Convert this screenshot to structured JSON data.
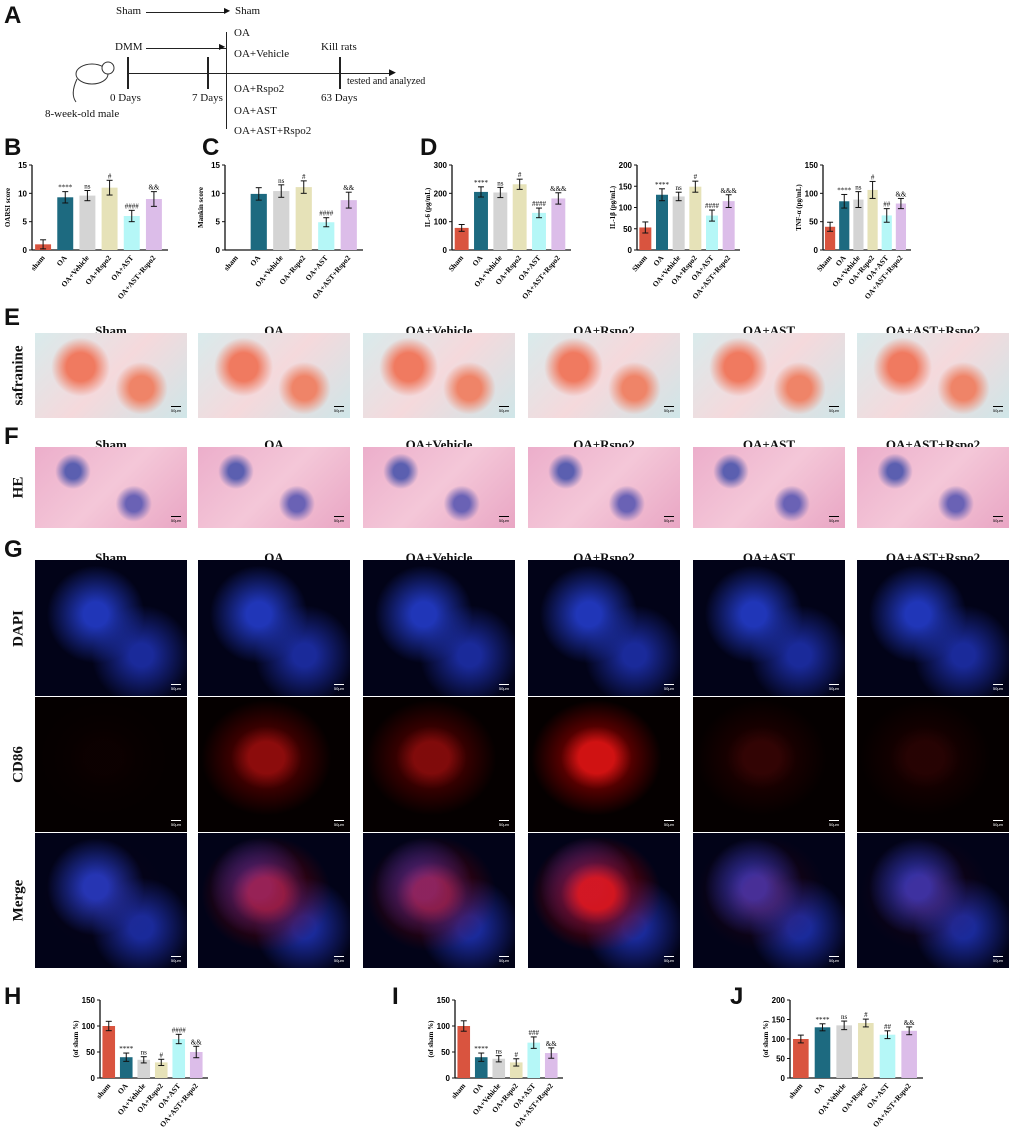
{
  "panel_labels": {
    "A": "A",
    "B": "B",
    "C": "C",
    "D": "D",
    "E": "E",
    "F": "F",
    "G": "G",
    "H": "H",
    "I": "I",
    "J": "J"
  },
  "timeline": {
    "sham_start": "Sham",
    "sham_end": "Sham",
    "dmm": "DMM",
    "groups": [
      "OA",
      "OA+Vehicle",
      "OA+Rspo2",
      "OA+AST",
      "OA+AST+Rspo2"
    ],
    "day0": "0 Days",
    "day7": "7 Days",
    "day63": "63 Days",
    "kill": "Kill rats",
    "tested": "tested and analyzed",
    "animal": "8-week-old male"
  },
  "micrographs": {
    "columns": [
      "Sham",
      "OA",
      "OA+Vehicle",
      "OA+Rspo2",
      "OA+AST",
      "OA+AST+Rspo2"
    ],
    "rows": {
      "E": "safranine",
      "F": "HE",
      "G1": "DAPI",
      "G2": "CD86",
      "G3": "Merge"
    },
    "scale_bar_label": "50μm"
  },
  "colors": {
    "sham": "#d9543f",
    "OA": "#1d6a80",
    "OA+Vehicle": "#d4d4d4",
    "OA+Rspo2": "#e6e2b8",
    "OA+AST": "#b5f7f7",
    "OA+AST+Rspo2": "#dcbde9"
  },
  "chart_data": [
    {
      "id": "B",
      "type": "bar",
      "ylabel": "OARSI score",
      "ylim": [
        0,
        15
      ],
      "yticks": [
        0,
        5,
        10,
        15
      ],
      "categories": [
        "sham",
        "OA",
        "OA+Vehicle",
        "OA+Rspo2",
        "OA+AST",
        "OA+AST+Rspo2"
      ],
      "values": [
        1,
        9.3,
        9.6,
        11,
        6,
        9
      ],
      "errors": [
        0.8,
        1,
        0.9,
        1.3,
        1,
        1.3
      ],
      "annotations": [
        "",
        "****",
        "ns",
        "#",
        "####",
        "&&"
      ]
    },
    {
      "id": "C",
      "type": "bar",
      "ylabel": "Mankin score",
      "ylim": [
        0,
        15
      ],
      "yticks": [
        0,
        5,
        10,
        15
      ],
      "categories": [
        "sham",
        "OA",
        "OA+Vehicle",
        "OA+Rspo2",
        "OA+AST",
        "OA+AST+Rspo2"
      ],
      "values": [
        0,
        9.9,
        10.4,
        11.1,
        4.9,
        8.8
      ],
      "errors": [
        0,
        1.1,
        1.1,
        1.1,
        0.8,
        1.4
      ],
      "annotations": [
        "",
        "",
        "ns",
        "#",
        "####",
        "&&"
      ]
    },
    {
      "id": "D1",
      "type": "bar",
      "ylabel": "IL-6 (pg/mL)",
      "ylim": [
        0,
        300
      ],
      "yticks": [
        0,
        100,
        200,
        300
      ],
      "categories": [
        "Sham",
        "OA",
        "OA+Vehicle",
        "OA+Rspo2",
        "OA+AST",
        "OA+AST+Rspo2"
      ],
      "values": [
        78,
        205,
        203,
        232,
        131,
        182
      ],
      "errors": [
        12,
        18,
        18,
        18,
        17,
        20
      ],
      "annotations": [
        "",
        "****",
        "ns",
        "#",
        "####",
        "&&&"
      ]
    },
    {
      "id": "D2",
      "type": "bar",
      "ylabel": "IL-1β (pg/mL)",
      "ylim": [
        0,
        200
      ],
      "yticks": [
        0,
        50,
        100,
        150,
        200
      ],
      "categories": [
        "Sham",
        "OA",
        "OA+Vehicle",
        "OA+Rspo2",
        "OA+AST",
        "OA+AST+Rspo2"
      ],
      "values": [
        53,
        130,
        126,
        149,
        81,
        115
      ],
      "errors": [
        13,
        14,
        10,
        13,
        13,
        15
      ],
      "annotations": [
        "",
        "****",
        "ns",
        "#",
        "####",
        "&&&"
      ]
    },
    {
      "id": "D3",
      "type": "bar",
      "ylabel": "TNF-α (pg/mL)",
      "ylim": [
        0,
        150
      ],
      "yticks": [
        0,
        50,
        100,
        150
      ],
      "categories": [
        "Sham",
        "OA",
        "OA+Vehicle",
        "OA+Rspo2",
        "OA+AST",
        "OA+AST+Rspo2"
      ],
      "values": [
        41,
        86,
        89,
        106,
        61,
        82
      ],
      "errors": [
        8,
        12,
        14,
        15,
        12,
        9
      ],
      "annotations": [
        "",
        "****",
        "ns",
        "#",
        "##",
        "&&"
      ]
    },
    {
      "id": "H",
      "type": "bar",
      "ylabel": "(of sham %)",
      "ylim": [
        0,
        150
      ],
      "yticks": [
        0,
        50,
        100,
        150
      ],
      "categories": [
        "sham",
        "OA",
        "OA+Vehicle",
        "OA+Rspo2",
        "OA+AST",
        "OA+AST+Rspo2"
      ],
      "values": [
        100,
        40,
        35,
        30,
        75,
        50
      ],
      "errors": [
        9,
        8,
        6,
        6,
        9,
        11
      ],
      "annotations": [
        "",
        "****",
        "ns",
        "#",
        "####",
        "&&"
      ]
    },
    {
      "id": "I",
      "type": "bar",
      "ylabel": "(of sham %)",
      "ylim": [
        0,
        150
      ],
      "yticks": [
        0,
        50,
        100,
        150
      ],
      "categories": [
        "sham",
        "OA",
        "OA+Vehicle",
        "OA+Rspo2",
        "OA+AST",
        "OA+AST+Rspo2"
      ],
      "values": [
        100,
        40,
        37,
        30,
        68,
        48
      ],
      "errors": [
        10,
        8,
        6,
        7,
        11,
        10
      ],
      "annotations": [
        "",
        "****",
        "ns",
        "#",
        "###",
        "&&"
      ]
    },
    {
      "id": "J",
      "type": "bar",
      "ylabel": "(of sham %)",
      "ylim": [
        0,
        200
      ],
      "yticks": [
        0,
        50,
        100,
        150,
        200
      ],
      "categories": [
        "sham",
        "OA",
        "OA+Vehicle",
        "OA+Rspo2",
        "OA+AST",
        "OA+AST+Rspo2"
      ],
      "values": [
        100,
        130,
        135,
        141,
        111,
        121
      ],
      "errors": [
        10,
        9,
        11,
        10,
        10,
        10
      ],
      "annotations": [
        "",
        "****",
        "ns",
        "#",
        "##",
        "&&"
      ]
    }
  ]
}
